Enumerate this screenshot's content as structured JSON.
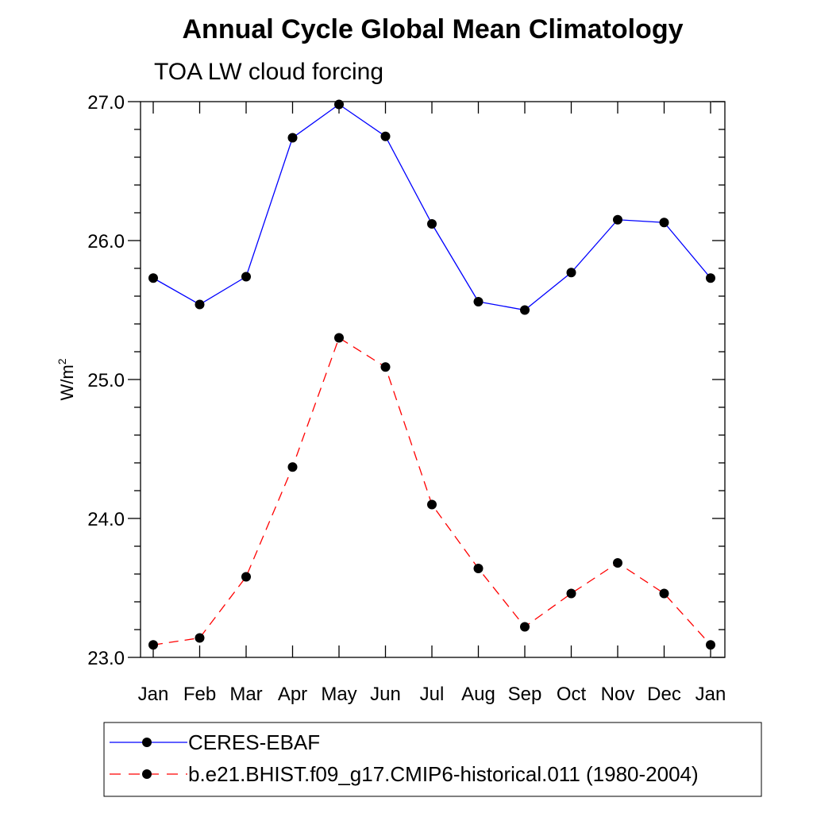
{
  "chart_data": {
    "type": "line",
    "title": "Annual Cycle Global Mean Climatology",
    "subtitle": "TOA LW cloud forcing",
    "xlabel": "",
    "ylabel": {
      "base": "W/m",
      "sup": "2"
    },
    "categories": [
      "Jan",
      "Feb",
      "Mar",
      "Apr",
      "May",
      "Jun",
      "Jul",
      "Aug",
      "Sep",
      "Oct",
      "Nov",
      "Dec",
      "Jan"
    ],
    "ylim": [
      23.0,
      27.0
    ],
    "yticks": [
      23.0,
      24.0,
      25.0,
      26.0,
      27.0
    ],
    "ytick_labels": [
      "23.0",
      "24.0",
      "25.0",
      "26.0",
      "27.0"
    ],
    "series": [
      {
        "name": "CERES-EBAF",
        "color": "#0000ff",
        "dash": "solid",
        "values": [
          25.73,
          25.54,
          25.74,
          26.74,
          26.98,
          26.75,
          26.12,
          25.56,
          25.5,
          25.77,
          26.15,
          26.13,
          25.73
        ]
      },
      {
        "name": "b.e21.BHIST.f09_g17.CMIP6-historical.011 (1980-2004)",
        "color": "#ff0000",
        "dash": "dashed",
        "values": [
          23.09,
          23.14,
          23.58,
          24.37,
          25.3,
          25.09,
          24.1,
          23.64,
          23.22,
          23.46,
          23.68,
          23.46,
          23.09
        ]
      }
    ],
    "legend_position": "bottom"
  }
}
